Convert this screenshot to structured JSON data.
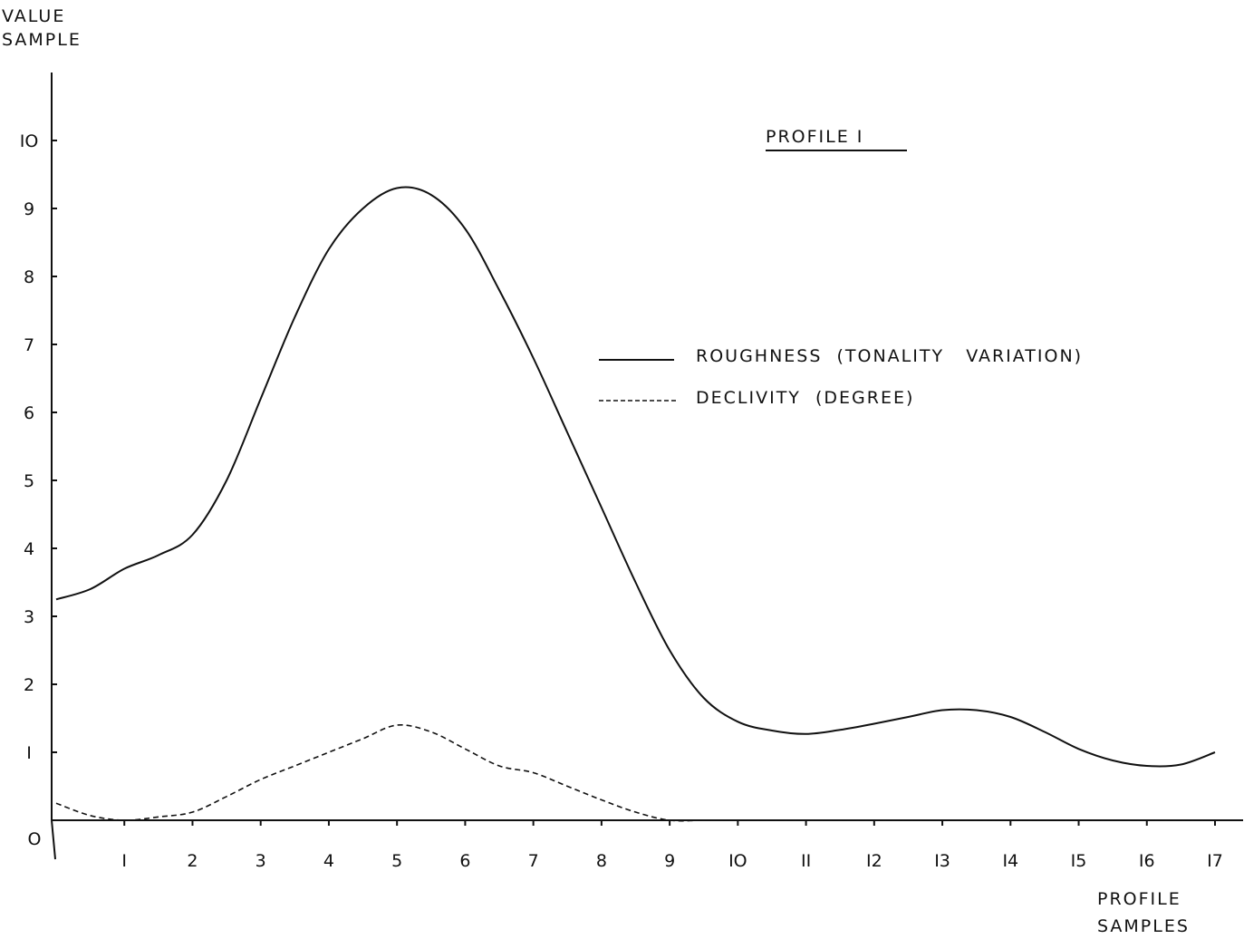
{
  "chart_data": {
    "type": "line",
    "title": "PROFILE   I",
    "ylabel": [
      "VALUE",
      "SAMPLE"
    ],
    "xlabel": [
      "PROFILE",
      "SAMPLES"
    ],
    "xlim": [
      0,
      17
    ],
    "ylim": [
      0,
      10
    ],
    "x_ticks": [
      {
        "v": 1,
        "label": "I"
      },
      {
        "v": 2,
        "label": "2"
      },
      {
        "v": 3,
        "label": "3"
      },
      {
        "v": 4,
        "label": "4"
      },
      {
        "v": 5,
        "label": "5"
      },
      {
        "v": 6,
        "label": "6"
      },
      {
        "v": 7,
        "label": "7"
      },
      {
        "v": 8,
        "label": "8"
      },
      {
        "v": 9,
        "label": "9"
      },
      {
        "v": 10,
        "label": "IO"
      },
      {
        "v": 11,
        "label": "II"
      },
      {
        "v": 12,
        "label": "I2"
      },
      {
        "v": 13,
        "label": "I3"
      },
      {
        "v": 14,
        "label": "I4"
      },
      {
        "v": 15,
        "label": "I5"
      },
      {
        "v": 16,
        "label": "I6"
      },
      {
        "v": 17,
        "label": "I7"
      }
    ],
    "y_ticks": [
      {
        "v": 0,
        "label": "O"
      },
      {
        "v": 1,
        "label": "I"
      },
      {
        "v": 2,
        "label": "2"
      },
      {
        "v": 3,
        "label": "3"
      },
      {
        "v": 4,
        "label": "4"
      },
      {
        "v": 5,
        "label": "5"
      },
      {
        "v": 6,
        "label": "6"
      },
      {
        "v": 7,
        "label": "7"
      },
      {
        "v": 8,
        "label": "8"
      },
      {
        "v": 9,
        "label": "9"
      },
      {
        "v": 10,
        "label": "IO"
      }
    ],
    "series": [
      {
        "name": "ROUGHNESS  (TONALITY   VARIATION)",
        "style": "solid",
        "x": [
          0,
          0.5,
          1,
          1.5,
          2,
          2.5,
          3,
          3.5,
          4,
          4.5,
          5,
          5.5,
          6,
          6.5,
          7,
          7.5,
          8,
          8.5,
          9,
          9.5,
          10,
          10.5,
          11,
          11.5,
          12,
          12.5,
          13,
          13.5,
          14,
          14.5,
          15,
          15.5,
          16,
          16.5,
          17
        ],
        "y": [
          3.25,
          3.4,
          3.7,
          3.9,
          4.2,
          5.0,
          6.2,
          7.4,
          8.4,
          9.0,
          9.3,
          9.2,
          8.7,
          7.8,
          6.8,
          5.7,
          4.6,
          3.5,
          2.5,
          1.8,
          1.45,
          1.32,
          1.27,
          1.33,
          1.42,
          1.52,
          1.62,
          1.62,
          1.52,
          1.3,
          1.05,
          0.88,
          0.8,
          0.82,
          1.0
        ]
      },
      {
        "name": "DECLIVITY  (DEGREE)",
        "style": "dashed",
        "x": [
          0,
          0.5,
          1,
          1.5,
          2,
          2.5,
          3,
          3.5,
          4,
          4.5,
          5,
          5.5,
          6,
          6.5,
          7,
          7.5,
          8,
          8.5,
          9,
          9.5,
          10,
          11,
          12,
          13,
          14,
          15,
          16,
          17
        ],
        "y": [
          0.25,
          0.07,
          0.0,
          0.05,
          0.12,
          0.35,
          0.6,
          0.8,
          1.0,
          1.2,
          1.4,
          1.3,
          1.05,
          0.8,
          0.7,
          0.5,
          0.3,
          0.12,
          0.0,
          0.0,
          0.0,
          0.0,
          0.0,
          0.0,
          0.0,
          0.0,
          0.0,
          0.0
        ]
      }
    ],
    "legend_placement": "right-center",
    "grid": false
  }
}
